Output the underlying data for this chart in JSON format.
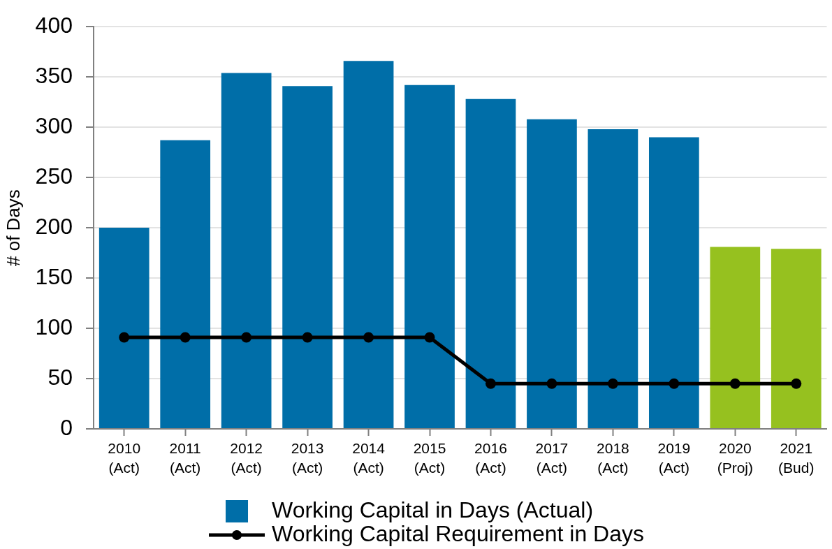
{
  "chart_data": {
    "type": "bar",
    "categories": [
      "2010 (Act)",
      "2011 (Act)",
      "2012 (Act)",
      "2013 (Act)",
      "2014 (Act)",
      "2015 (Act)",
      "2016 (Act)",
      "2017 (Act)",
      "2018 (Act)",
      "2019 (Act)",
      "2020 (Proj)",
      "2021 (Bud)"
    ],
    "series": [
      {
        "name": "Working Capital in Days (Actual)",
        "color": "#006ea8",
        "colors": [
          "#006ea8",
          "#006ea8",
          "#006ea8",
          "#006ea8",
          "#006ea8",
          "#006ea8",
          "#006ea8",
          "#006ea8",
          "#006ea8",
          "#006ea8",
          "#96c11f",
          "#96c11f"
        ],
        "values": [
          200,
          287,
          354,
          341,
          366,
          342,
          328,
          308,
          298,
          290,
          181,
          179
        ]
      },
      {
        "name": "Working Capital Requirement in Days",
        "type": "line",
        "color": "#000000",
        "values": [
          91,
          91,
          91,
          91,
          91,
          91,
          45,
          45,
          45,
          45,
          45,
          45
        ]
      }
    ],
    "ylabel": "# of Days",
    "ylim": [
      0,
      400
    ],
    "yticks": [
      0,
      50,
      100,
      150,
      200,
      250,
      300,
      350,
      400
    ],
    "grid": "y",
    "legend": "bottom",
    "marker": "circle",
    "line_style": "solid"
  }
}
